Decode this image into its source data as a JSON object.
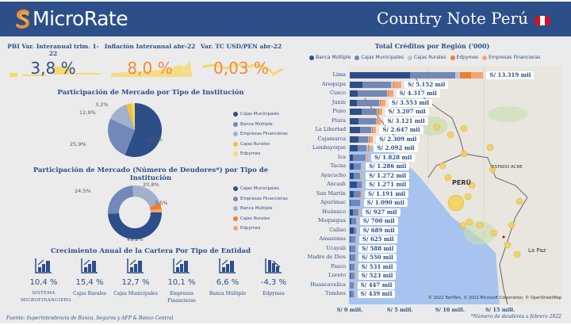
{
  "header": {
    "brand": "MicroRate",
    "title": "Country Note Perú",
    "flag_colors": [
      "#d91023",
      "#ffffff",
      "#d91023"
    ]
  },
  "kpis": [
    {
      "label": "PBI Var. Interanual trim. 1-22",
      "value": "3,8 %",
      "color": "#2c4f8a"
    },
    {
      "label": "Inflación Interanual abr-22",
      "value": "8,0 %",
      "color": "#f08a3c"
    },
    {
      "label": "Var. TC USD/PEN abr-22",
      "value": "0,03 %",
      "color": "#f08a3c"
    }
  ],
  "colors": {
    "banca_multiple": "#2c4f8a",
    "cajas_municipales": "#7388b8",
    "cajas_rurales": "#b8c2da",
    "edpymes": "#f07f2e",
    "empresas_financieras": "#f5a572",
    "yellow": "#f2c434",
    "yellow_light": "#f5d96b",
    "sparkline": "#f5d96b"
  },
  "chart_data": [
    {
      "type": "pie",
      "title": "Participación de Mercado por Tipo de Institución",
      "legend": [
        "Cajas Municipales",
        "Banca Múltiple",
        "Empresas Financieras",
        "Cajas Rurales",
        "Edpymes"
      ],
      "labels": [
        "Cajas Municipales",
        "Banca Múltiple",
        "Empresas Financieras",
        "Cajas Rurales",
        "Edpymes"
      ],
      "values": [
        56.0,
        25.9,
        12.9,
        3.2,
        2.0
      ],
      "data_labels": [
        "56,0%",
        "25,9%",
        "12,9%",
        "3,2%",
        ""
      ],
      "colors": [
        "#2c4f8a",
        "#7388b8",
        "#a3b0cc",
        "#f2c434",
        "#f5d96b"
      ],
      "legend_position": "right"
    },
    {
      "type": "pie",
      "subtype": "donut",
      "title": "Participación de Mercado (Número de Deudores*) por Tipo de Institución",
      "legend": [
        "Cajas Municipales",
        "Empresas Financieras",
        "Banca Múltiple",
        "Cajas Rurales",
        "Edpymes"
      ],
      "labels": [
        "Cajas Municipales",
        "Empresas Financieras",
        "Banca Múltiple",
        "Cajas Rurales",
        "Edpymes"
      ],
      "values": [
        49.2,
        24.5,
        20.8,
        3.5,
        2.0
      ],
      "data_labels": [
        "49,2%",
        "24,5%",
        "20,8%",
        "3,5%",
        ""
      ],
      "colors": [
        "#2c4f8a",
        "#7388b8",
        "#a3b0cc",
        "#f07f2e",
        "#f5a572"
      ],
      "legend_position": "right"
    },
    {
      "type": "bar",
      "orientation": "horizontal",
      "stacked": true,
      "title": "Total Créditos por Región ('000)",
      "legend": [
        "Banca Múltiple",
        "Cajas Municipales",
        "Cajas Rurales",
        "Edpymes",
        "Empresas Financieras"
      ],
      "legend_position": "top",
      "categories": [
        "Lima",
        "Arequipa",
        "Cusco",
        "Junín",
        "Puno",
        "Piura",
        "La Libertad",
        "Cajamarca",
        "Lambayeque",
        "Ica",
        "Tacna",
        "Ayacucho",
        "Ancash",
        "San Martín",
        "Apurímac",
        "Huánuco",
        "Moquegua",
        "Callao",
        "Amazonas",
        "Ucayali",
        "Madre de Dios",
        "Pasco",
        "Loreto",
        "Huancavelica",
        "Tumbes"
      ],
      "totals": [
        13319,
        5152,
        4317,
        3553,
        3207,
        3121,
        2647,
        2309,
        2092,
        1828,
        1286,
        1272,
        1271,
        1191,
        1090,
        927,
        700,
        689,
        625,
        588,
        550,
        531,
        523,
        447,
        439
      ],
      "value_labels": [
        "S/ 13.319 mil",
        "S/ 5.152 mil",
        "S/ 4.317 mil",
        "S/ 3.553 mil",
        "S/ 3.207 mil",
        "S/ 3.121 mil",
        "S/ 2.647 mil",
        "S/ 2.309 mil",
        "S/ 2.092 mil",
        "S/ 1.828 mil",
        "S/ 1.286 mil",
        "S/ 1.272 mil",
        "S/ 1.271 mil",
        "S/ 1.191 mil",
        "S/ 1.090 mil",
        "S/ 927 mil",
        "S/ 700 mil",
        "S/ 689 mil",
        "S/ 625 mil",
        "S/ 588 mil",
        "S/ 550 mil",
        "S/ 531 mil",
        "S/ 523 mil",
        "S/ 447 mil",
        "S/ 439 mil"
      ],
      "series": [
        {
          "name": "Banca Múltiple",
          "values": [
            6000,
            1300,
            800,
            700,
            1200,
            900,
            1000,
            900,
            800,
            300,
            400,
            400,
            700,
            400,
            100,
            300,
            150,
            400,
            100,
            100,
            50,
            50,
            50,
            30,
            50
          ]
        },
        {
          "name": "Cajas Municipales",
          "values": [
            4500,
            2800,
            2900,
            2200,
            1500,
            1700,
            1100,
            900,
            900,
            1300,
            700,
            650,
            450,
            600,
            900,
            500,
            450,
            200,
            450,
            420,
            470,
            420,
            420,
            350,
            330
          ]
        },
        {
          "name": "Cajas Rurales",
          "values": [
            500,
            250,
            100,
            100,
            100,
            100,
            100,
            100,
            100,
            50,
            60,
            60,
            40,
            60,
            30,
            30,
            30,
            20,
            20,
            20,
            10,
            20,
            20,
            20,
            20
          ]
        },
        {
          "name": "Edpymes",
          "values": [
            1100,
            100,
            100,
            100,
            100,
            100,
            100,
            100,
            100,
            30,
            30,
            30,
            30,
            30,
            10,
            20,
            20,
            20,
            15,
            10,
            5,
            10,
            10,
            10,
            10
          ]
        },
        {
          "name": "Empresas Financieras",
          "values": [
            1219,
            702,
            417,
            453,
            307,
            321,
            347,
            309,
            192,
            148,
            96,
            132,
            51,
            101,
            50,
            77,
            50,
            49,
            40,
            38,
            15,
            31,
            23,
            37,
            29
          ]
        }
      ],
      "xticks": [
        "S/ 0 mill.",
        "S/ 5 mill.",
        "S/ 10 mill.",
        "S/ 15 mill."
      ],
      "xlim": [
        0,
        17000
      ]
    }
  ],
  "growth": {
    "title": "Crecimiento Anual de la Cartera Por Tipo de Entidad",
    "items": [
      {
        "value": "10,4 %",
        "label": "SISTEMA MICROFINANCIERO",
        "icon": "chart-up-icon"
      },
      {
        "value": "15,4 %",
        "label": "Cajas Rurales",
        "icon": "chart-up-icon"
      },
      {
        "value": "12,7 %",
        "label": "Cajas Municipales",
        "icon": "chart-up-icon"
      },
      {
        "value": "10,1 %",
        "label": "Empresas Financieras",
        "icon": "chart-up-icon"
      },
      {
        "value": "6,6 %",
        "label": "Banca Múltiple",
        "icon": "chart-up-icon"
      },
      {
        "value": "-4,3 %",
        "label": "Edpymes",
        "icon": "chart-down-icon"
      }
    ]
  },
  "map": {
    "labels": {
      "country": "PERÚ",
      "acre": "ESTADO ACRE",
      "lapaz": "La Paz",
      "lima": "Lima",
      "ecuador": "ECUADOR"
    },
    "attribution": "© 2022 TomTom, © 2022 Microsoft Corporation, © OpenStreetMap",
    "bing": "Bing"
  },
  "footer": {
    "source": "Fuente: Superintendencia de Banca, Seguros y AFP & Banco Central",
    "note": "*Número de deudores a febrero 2022"
  }
}
